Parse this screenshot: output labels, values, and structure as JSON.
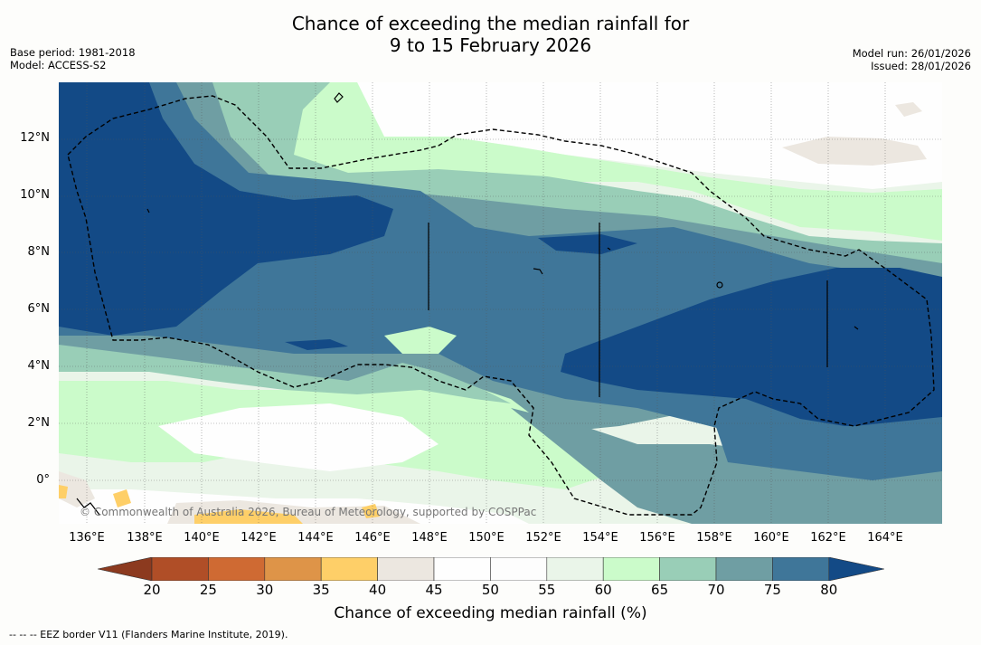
{
  "title_line1": "Chance of exceeding the median rainfall for",
  "title_line2": "9 to 15 February 2026",
  "base_period": "Base period: 1981-2018",
  "model": "Model: ACCESS-S2",
  "model_run": "Model run: 26/01/2026",
  "issued": "Issued: 28/01/2026",
  "copyright": "© Commonwealth of Australia 2026, Bureau of Meteorology, supported by COSPPac",
  "lat_labels": [
    "12°N",
    "10°N",
    "8°N",
    "6°N",
    "4°N",
    "2°N",
    "0°"
  ],
  "lon_labels": [
    "136°E",
    "138°E",
    "140°E",
    "142°E",
    "144°E",
    "146°E",
    "148°E",
    "150°E",
    "152°E",
    "154°E",
    "156°E",
    "158°E",
    "160°E",
    "162°E",
    "164°E"
  ],
  "colorbar": {
    "label": "Chance of exceeding median rainfall (%)",
    "ticks": [
      "20",
      "25",
      "30",
      "35",
      "40",
      "45",
      "50",
      "55",
      "60",
      "65",
      "70",
      "75",
      "80"
    ],
    "colors": {
      "lt20": "#8c3a1f",
      "c20_25": "#b04e27",
      "c25_30": "#cf6a33",
      "c30_35": "#de9448",
      "c35_40": "#fecf68",
      "c40_45": "#ece7e0",
      "c45_50": "#fefefe",
      "c50_55": "#fdfdfd",
      "c55_60": "#eaf5e9",
      "c60_65": "#cbfbca",
      "c65_70": "#99ceb7",
      "c70_75": "#6f9ea3",
      "c75_80": "#3f7699",
      "gt80": "#134a86"
    }
  },
  "footnote": "--  --  -- EEZ border V11 (Flanders Marine Institute, 2019)."
}
